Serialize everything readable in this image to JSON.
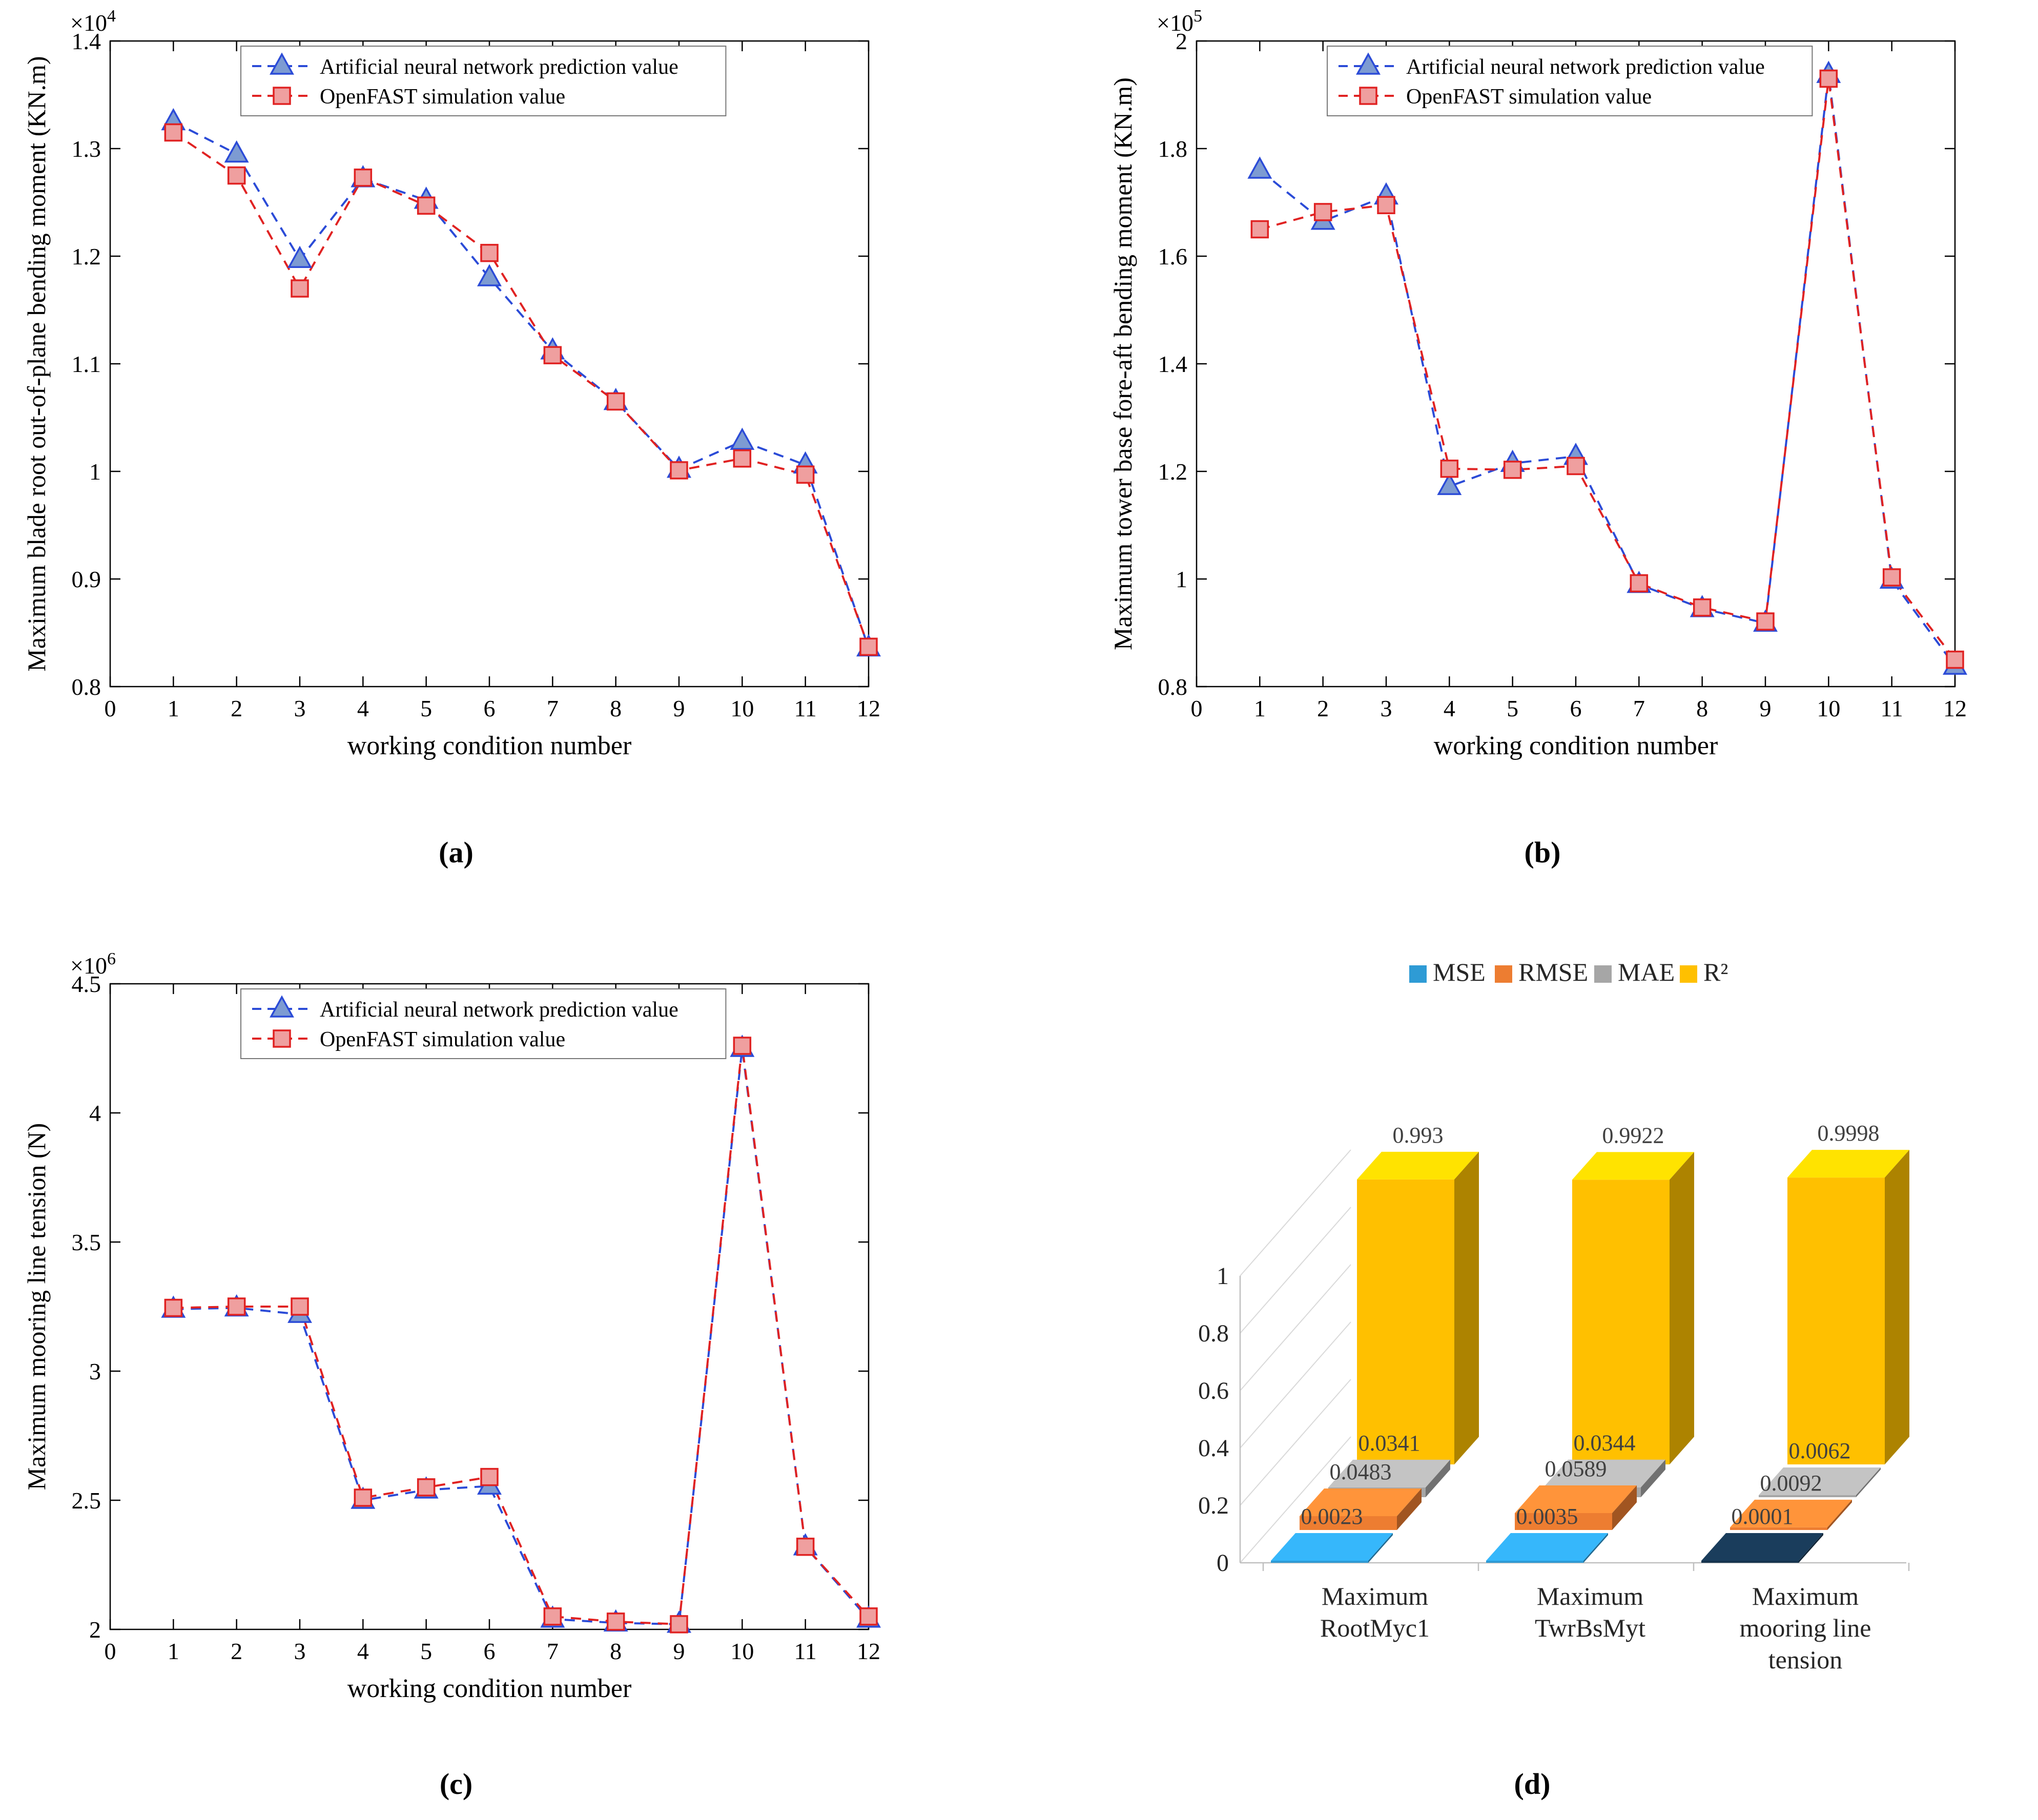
{
  "page": {
    "background": "#ffffff"
  },
  "captions": {
    "a": "(a)",
    "b": "(b)",
    "c": "(c)",
    "d": "(d)"
  },
  "chart_data": [
    {
      "id": "a",
      "type": "line",
      "xlabel": "working condition number",
      "ylabel": "Maximum blade root out-of-plane bending moment (KN.m)",
      "exponent": {
        "base": "×10",
        "power": "4"
      },
      "xlim": [
        0,
        12
      ],
      "xticks": [
        0,
        1,
        2,
        3,
        4,
        5,
        6,
        7,
        8,
        9,
        10,
        11,
        12
      ],
      "ylim": [
        0.8,
        1.4
      ],
      "ytick_values": [
        0.8,
        0.9,
        1.0,
        1.1,
        1.2,
        1.3,
        1.4
      ],
      "ytick_labels": [
        "0.8",
        "0.9",
        "1",
        "1.1",
        "1.2",
        "1.3",
        "1.4"
      ],
      "x": [
        1,
        2,
        3,
        4,
        5,
        6,
        7,
        8,
        9,
        10,
        11,
        12
      ],
      "grid": false,
      "legend_position": "top-inside",
      "series": [
        {
          "name": "Artificial neural network prediction value",
          "marker": "triangle",
          "color": "#2b4bd7",
          "fill": "#7d9bd2",
          "values": [
            1.325,
            1.295,
            1.197,
            1.272,
            1.252,
            1.18,
            1.112,
            1.065,
            1.002,
            1.028,
            1.006,
            0.836
          ]
        },
        {
          "name": "OpenFAST simulation value",
          "marker": "square",
          "color": "#e02222",
          "fill": "#ef9f9f",
          "values": [
            1.315,
            1.275,
            1.17,
            1.273,
            1.247,
            1.203,
            1.108,
            1.065,
            1.001,
            1.012,
            0.997,
            0.837
          ]
        }
      ]
    },
    {
      "id": "b",
      "type": "line",
      "xlabel": "working condition number",
      "ylabel": "Maximum tower base fore-aft bending moment (KN.m)",
      "exponent": {
        "base": "×10",
        "power": "5"
      },
      "xlim": [
        0,
        12
      ],
      "xticks": [
        0,
        1,
        2,
        3,
        4,
        5,
        6,
        7,
        8,
        9,
        10,
        11,
        12
      ],
      "ylim": [
        0.8,
        2.0
      ],
      "ytick_values": [
        0.8,
        1.0,
        1.2,
        1.4,
        1.6,
        1.8,
        2.0
      ],
      "ytick_labels": [
        "0.8",
        "1",
        "1.2",
        "1.4",
        "1.6",
        "1.8",
        "2"
      ],
      "x": [
        1,
        2,
        3,
        4,
        5,
        6,
        7,
        8,
        9,
        10,
        11,
        12
      ],
      "grid": false,
      "legend_position": "top-inside",
      "series": [
        {
          "name": "Artificial neural network prediction value",
          "marker": "triangle",
          "color": "#2b4bd7",
          "fill": "#7d9bd2",
          "values": [
            1.76,
            1.665,
            1.712,
            1.172,
            1.215,
            1.228,
            0.99,
            0.945,
            0.918,
            1.938,
            0.998,
            0.838
          ]
        },
        {
          "name": "OpenFAST simulation value",
          "marker": "square",
          "color": "#e02222",
          "fill": "#ef9f9f",
          "values": [
            1.65,
            1.682,
            1.695,
            1.205,
            1.203,
            1.21,
            0.992,
            0.947,
            0.921,
            1.93,
            1.003,
            0.85
          ]
        }
      ]
    },
    {
      "id": "c",
      "type": "line",
      "xlabel": "working condition number",
      "ylabel": "Maximum mooring line tension (N)",
      "exponent": {
        "base": "×10",
        "power": "6"
      },
      "xlim": [
        0,
        12
      ],
      "xticks": [
        0,
        1,
        2,
        3,
        4,
        5,
        6,
        7,
        8,
        9,
        10,
        11,
        12
      ],
      "ylim": [
        2.0,
        4.5
      ],
      "ytick_values": [
        2.0,
        2.5,
        3.0,
        3.5,
        4.0,
        4.5
      ],
      "ytick_labels": [
        "2",
        "2.5",
        "3",
        "3.5",
        "4",
        "4.5"
      ],
      "x": [
        1,
        2,
        3,
        4,
        5,
        6,
        7,
        8,
        9,
        10,
        11,
        12
      ],
      "grid": false,
      "legend_position": "top-inside",
      "series": [
        {
          "name": "Artificial neural network prediction value",
          "marker": "triangle",
          "color": "#2b4bd7",
          "fill": "#7d9bd2",
          "values": [
            3.24,
            3.245,
            3.22,
            2.5,
            2.54,
            2.555,
            2.04,
            2.025,
            2.02,
            4.25,
            2.32,
            2.04
          ]
        },
        {
          "name": "OpenFAST simulation value",
          "marker": "square",
          "color": "#e02222",
          "fill": "#ef9f9f",
          "values": [
            3.245,
            3.25,
            3.25,
            2.51,
            2.55,
            2.59,
            2.05,
            2.03,
            2.02,
            4.26,
            2.32,
            2.05
          ]
        }
      ]
    },
    {
      "id": "d",
      "type": "bar3d",
      "ylim": [
        0,
        1
      ],
      "ytick_values": [
        0,
        0.2,
        0.4,
        0.6,
        0.8,
        1
      ],
      "ytick_labels": [
        "0",
        "0.2",
        "0.4",
        "0.6",
        "0.8",
        "1"
      ],
      "groups": [
        [
          "Maximum",
          "RootMyc1"
        ],
        [
          "Maximum",
          "TwrBsMyt"
        ],
        [
          "Maximum",
          "mooring line",
          "tension"
        ]
      ],
      "series": [
        {
          "name": "MSE",
          "color": "#2e9bd5",
          "bar_colors": [
            "#2e9bd5",
            "#2e9bd5",
            "#16344e"
          ],
          "values": [
            0.0023,
            0.0035,
            0.0001
          ],
          "labels": [
            "0.0023",
            "0.0035",
            "0.0001"
          ]
        },
        {
          "name": "RMSE",
          "color": "#ed7d31",
          "values": [
            0.0483,
            0.0589,
            0.0092
          ],
          "labels": [
            "0.0483",
            "0.0589",
            "0.0092"
          ]
        },
        {
          "name": "MAE",
          "color": "#a6a6a6",
          "values": [
            0.0341,
            0.0344,
            0.0062
          ],
          "labels": [
            "0.0341",
            "0.0344",
            "0.0062"
          ]
        },
        {
          "name": "R²",
          "color": "#ffc000",
          "values": [
            0.993,
            0.9922,
            0.9998
          ],
          "labels": [
            "0.993",
            "0.9922",
            "0.9998"
          ]
        }
      ]
    }
  ]
}
